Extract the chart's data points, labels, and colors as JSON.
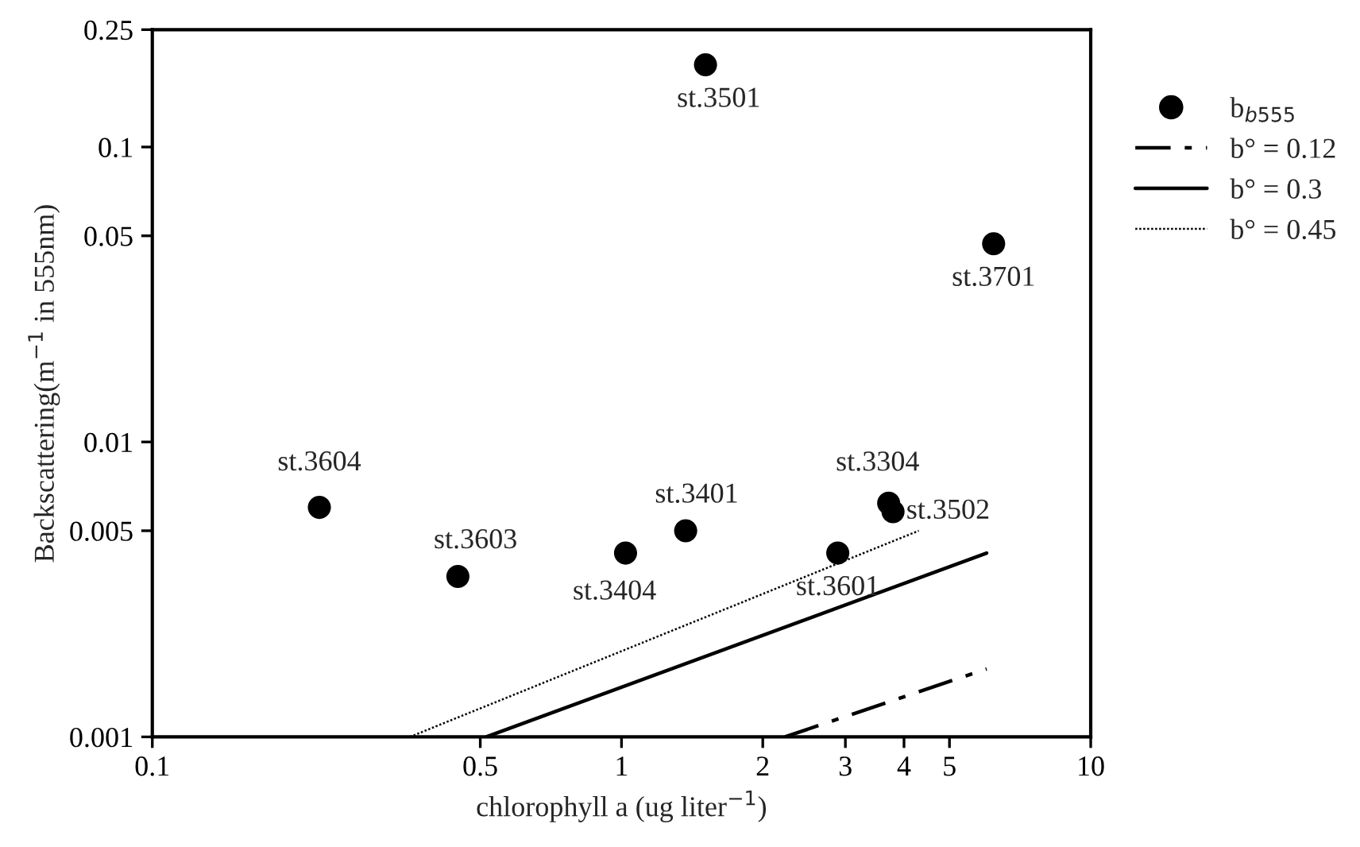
{
  "chart_data": {
    "type": "scatter",
    "xlabel": "chlorophyll a (ug liter$^{−1}$)",
    "ylabel": "Backscattering(m$^{−1}$ in 555nm)",
    "log": "xy",
    "xlim": [
      0.1,
      10
    ],
    "ylim": [
      0.001,
      0.25
    ],
    "xticks": [
      0.1,
      0.5,
      1,
      2,
      3,
      4,
      5,
      10
    ],
    "yticks": [
      0.001,
      0.005,
      0.01,
      0.05,
      0.1,
      0.25
    ],
    "grid": false,
    "legend": "right",
    "series": [
      {
        "name": "b$_{b555}$",
        "marker": "circle",
        "color": "#000000",
        "x": [
          0.227,
          0.448,
          1.02,
          1.37,
          1.51,
          2.89,
          3.71,
          3.79,
          6.21
        ],
        "values": [
          0.006,
          0.0035,
          0.0042,
          0.005,
          0.19,
          0.0042,
          0.0062,
          0.0058,
          0.047
        ]
      },
      {
        "name": "b° = 0.12",
        "type": "line",
        "line_style": "dashed",
        "color": "#000000",
        "x": [
          2.23,
          6.0
        ],
        "values": [
          0.001,
          0.0017
        ]
      },
      {
        "name": "b° = 0.3",
        "type": "line",
        "line_style": "solid",
        "color": "#000000",
        "x": [
          0.515,
          6.0
        ],
        "values": [
          0.001,
          0.0042
        ]
      },
      {
        "name": "b° = 0.45",
        "type": "line",
        "line_style": "dotted",
        "color": "#000000",
        "x": [
          0.354,
          4.3
        ],
        "values": [
          0.001,
          0.005
        ]
      }
    ],
    "annotations": [
      {
        "text": "st.3604",
        "x": 0.227,
        "y": 0.006
      },
      {
        "text": "st.3603",
        "x": 0.448,
        "y": 0.0035
      },
      {
        "text": "st.3404",
        "x": 1.02,
        "y": 0.0042
      },
      {
        "text": "st.3401",
        "x": 1.37,
        "y": 0.005
      },
      {
        "text": "st.3501",
        "x": 1.51,
        "y": 0.19
      },
      {
        "text": "st.3601",
        "x": 2.89,
        "y": 0.0042
      },
      {
        "text": "st.3304",
        "x": 3.71,
        "y": 0.0062
      },
      {
        "text": "st.3502",
        "x": 3.79,
        "y": 0.0058
      },
      {
        "text": "st.3701",
        "x": 6.21,
        "y": 0.047
      }
    ]
  }
}
